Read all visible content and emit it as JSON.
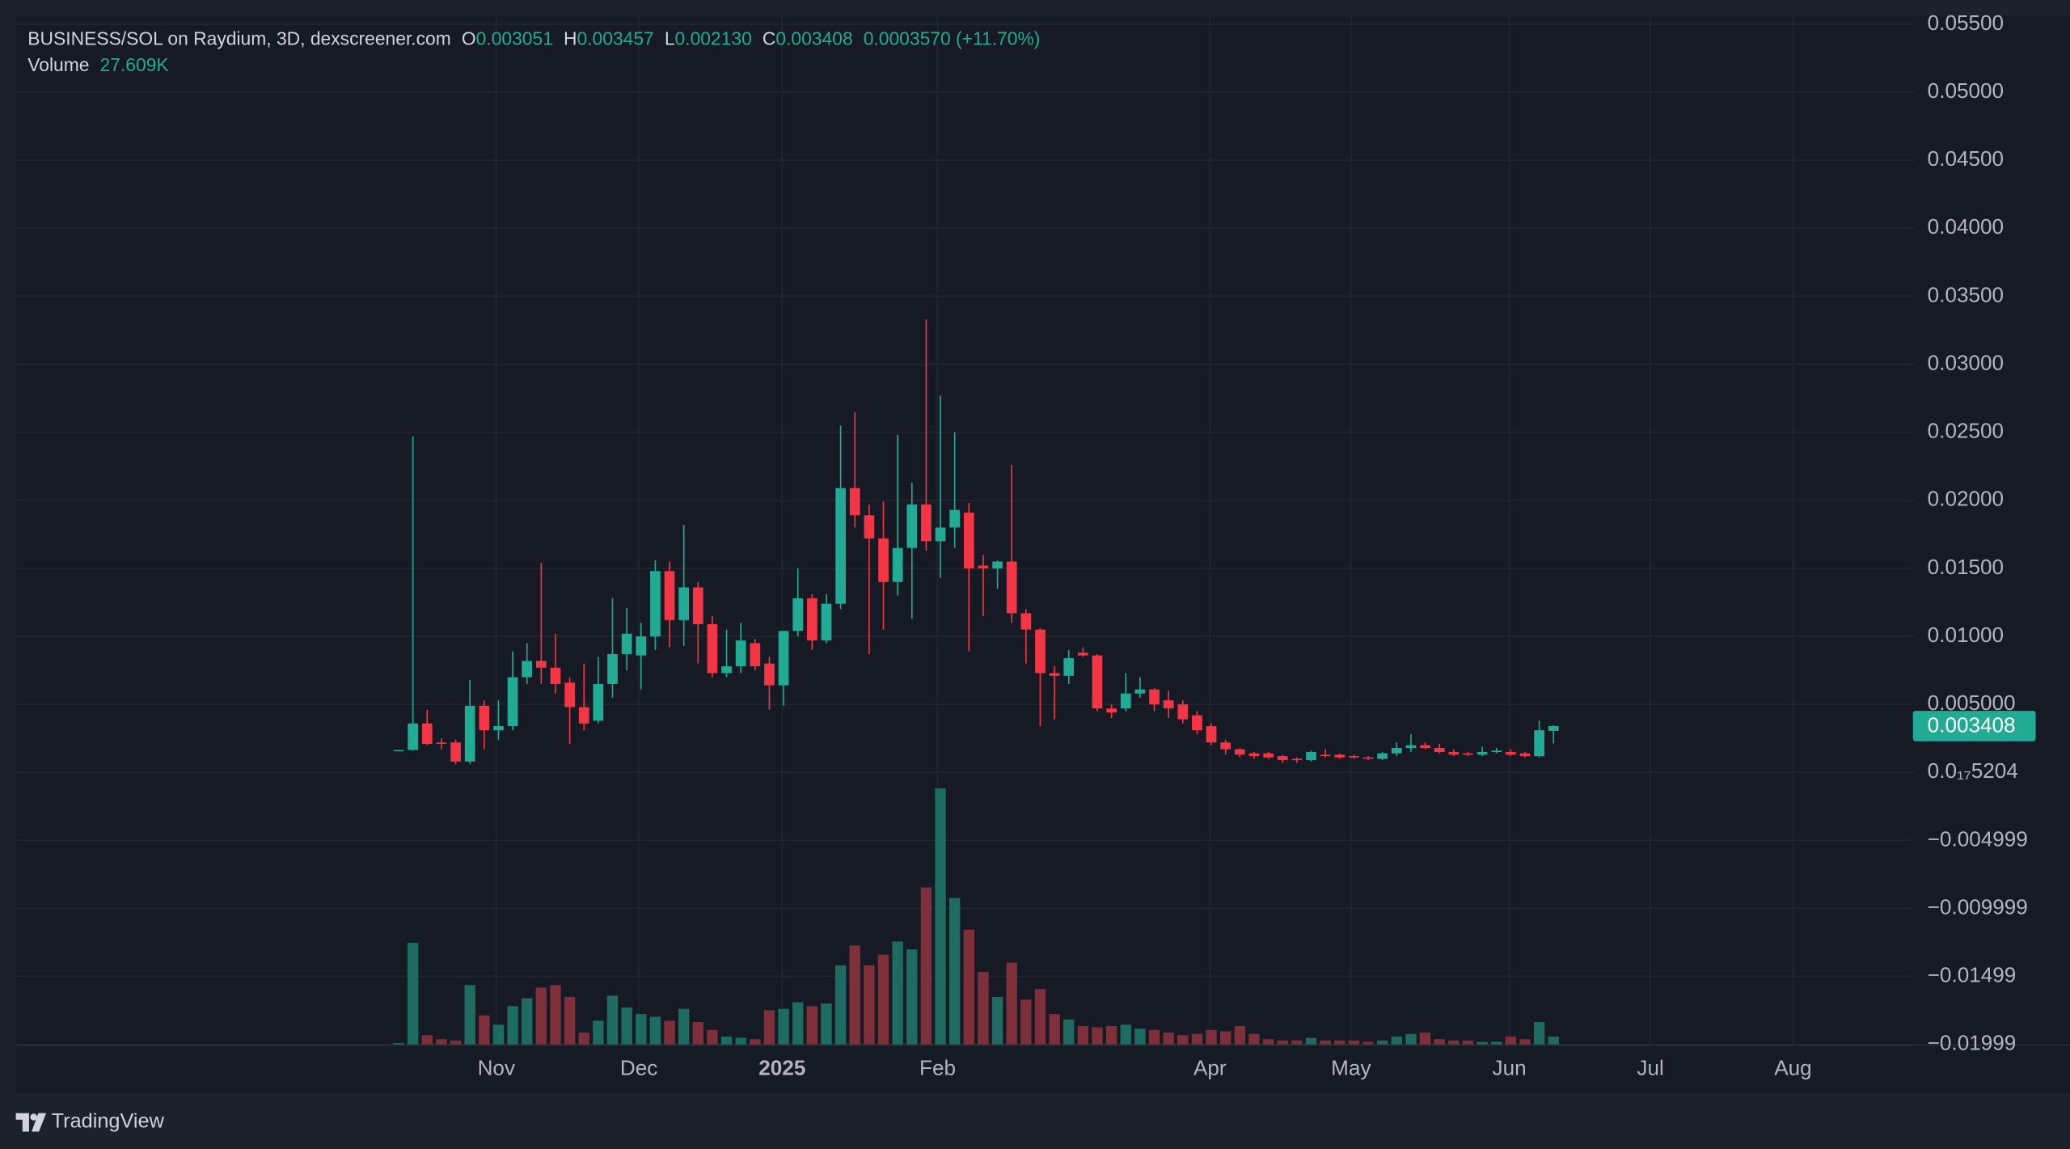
{
  "chart_data": {
    "type": "candlestick",
    "title": "BUSINESS/SOL on Raydium, 3D, dexscreener.com",
    "legend": [
      {
        "label": "O",
        "value": "0.003051"
      },
      {
        "label": "H",
        "value": "0.003457"
      },
      {
        "label": "L",
        "value": "0.002130"
      },
      {
        "label": "C",
        "value": "0.003408"
      }
    ],
    "change": "0.0003570 (+11.70%)",
    "volume_label": "Volume",
    "volume_text": "27.609K",
    "last_price_label": "0.003408",
    "branding": "TradingView",
    "categories": [
      null,
      null,
      null,
      null,
      null,
      null,
      null,
      null,
      null,
      null,
      null,
      null,
      null,
      null,
      null,
      null,
      null,
      null,
      null,
      null,
      null,
      null,
      null,
      null,
      null,
      null,
      null,
      null,
      null,
      null,
      null,
      null,
      null,
      null,
      null,
      null,
      null,
      null,
      null,
      null,
      null,
      null,
      null,
      null,
      null,
      null,
      null,
      null,
      null,
      null,
      null,
      null,
      null,
      null,
      null,
      null,
      null,
      null,
      null,
      null,
      null,
      null,
      null,
      null,
      null,
      null,
      null,
      null,
      null,
      null,
      null,
      null,
      null,
      null,
      null,
      null,
      null,
      null,
      null,
      null,
      null,
      null
    ],
    "open": [
      0.00165,
      0.00165,
      0.0036,
      0.0022,
      0.0022,
      0.0008,
      0.0049,
      0.0031,
      0.0034,
      0.007,
      0.0082,
      0.0077,
      0.0066,
      0.0048,
      0.0038,
      0.0065,
      0.0087,
      0.0086,
      0.01,
      0.0148,
      0.0112,
      0.0136,
      0.0109,
      0.0073,
      0.0078,
      0.0095,
      0.008,
      0.0064,
      0.0104,
      0.0128,
      0.0097,
      0.0124,
      0.0209,
      0.0189,
      0.0172,
      0.014,
      0.0165,
      0.0197,
      0.017,
      0.018,
      0.0191,
      0.0152,
      0.015,
      0.0155,
      0.0117,
      0.0105,
      0.0073,
      0.0071,
      0.0088,
      0.0086,
      0.0047,
      0.0047,
      0.0058,
      0.0061,
      0.0053,
      0.005,
      0.0042,
      0.0034,
      0.0022,
      0.0017,
      0.0014,
      0.0014,
      0.0012,
      0.001,
      0.0009,
      0.0013,
      0.0013,
      0.0012,
      0.0011,
      0.001,
      0.0014,
      0.0018,
      0.002,
      0.0018,
      0.0015,
      0.0014,
      0.0013,
      0.0015,
      0.0015,
      0.0014,
      0.0012,
      0.003051
    ],
    "high": [
      0.00165,
      0.0247,
      0.0046,
      0.0025,
      0.0024,
      0.0068,
      0.0053,
      0.0053,
      0.0089,
      0.0095,
      0.0154,
      0.0102,
      0.007,
      0.008,
      0.0085,
      0.0128,
      0.0121,
      0.011,
      0.0156,
      0.0155,
      0.0182,
      0.014,
      0.0115,
      0.0105,
      0.011,
      0.0098,
      0.0085,
      0.0104,
      0.015,
      0.0131,
      0.0131,
      0.0255,
      0.0265,
      0.0197,
      0.0199,
      0.0248,
      0.0213,
      0.0333,
      0.0277,
      0.025,
      0.0198,
      0.016,
      0.0156,
      0.0226,
      0.012,
      0.0106,
      0.0078,
      0.009,
      0.0092,
      0.0087,
      0.005,
      0.0073,
      0.007,
      0.0062,
      0.006,
      0.0053,
      0.0045,
      0.0036,
      0.0024,
      0.0018,
      0.0015,
      0.0015,
      0.0013,
      0.0011,
      0.0016,
      0.0017,
      0.0014,
      0.0013,
      0.0012,
      0.0015,
      0.0022,
      0.0028,
      0.0022,
      0.0021,
      0.0017,
      0.0015,
      0.0019,
      0.0018,
      0.0017,
      0.0015,
      0.0038,
      0.003457
    ],
    "low": [
      0.00165,
      0.0016,
      0.002,
      0.0017,
      0.0006,
      0.0006,
      0.0017,
      0.0024,
      0.0031,
      0.0065,
      0.0065,
      0.0058,
      0.0021,
      0.0031,
      0.0036,
      0.0055,
      0.0075,
      0.0061,
      0.009,
      0.0092,
      0.0093,
      0.008,
      0.007,
      0.007,
      0.0073,
      0.0075,
      0.0046,
      0.0049,
      0.01,
      0.009,
      0.0095,
      0.012,
      0.018,
      0.0087,
      0.0105,
      0.013,
      0.0113,
      0.0163,
      0.0143,
      0.0165,
      0.0089,
      0.0115,
      0.0135,
      0.011,
      0.008,
      0.0034,
      0.0039,
      0.0065,
      0.0085,
      0.0045,
      0.004,
      0.0045,
      0.0055,
      0.0045,
      0.004,
      0.0036,
      0.0028,
      0.002,
      0.0013,
      0.0011,
      0.001,
      0.001,
      0.0007,
      0.0007,
      0.0008,
      0.0011,
      0.001,
      0.001,
      0.0009,
      0.0009,
      0.0012,
      0.0015,
      0.0017,
      0.0014,
      0.0012,
      0.0012,
      0.0012,
      0.0014,
      0.0012,
      0.0011,
      0.0011,
      0.00213
    ],
    "close": [
      0.00165,
      0.0036,
      0.0021,
      0.0021,
      0.0008,
      0.0049,
      0.0031,
      0.0034,
      0.007,
      0.0082,
      0.0077,
      0.0065,
      0.0048,
      0.0036,
      0.0065,
      0.0087,
      0.0102,
      0.01,
      0.0148,
      0.0112,
      0.0136,
      0.0109,
      0.0073,
      0.0078,
      0.0097,
      0.0078,
      0.0064,
      0.0104,
      0.0128,
      0.0097,
      0.0124,
      0.0209,
      0.0189,
      0.0172,
      0.014,
      0.0165,
      0.0197,
      0.017,
      0.018,
      0.0193,
      0.015,
      0.015,
      0.0155,
      0.0117,
      0.0105,
      0.0073,
      0.0071,
      0.0084,
      0.0086,
      0.0047,
      0.0044,
      0.0058,
      0.0061,
      0.005,
      0.0047,
      0.0039,
      0.0031,
      0.0022,
      0.0017,
      0.0013,
      0.0012,
      0.0011,
      0.0009,
      0.0009,
      0.0015,
      0.0012,
      0.0011,
      0.0011,
      0.001,
      0.0014,
      0.0018,
      0.002,
      0.0018,
      0.0015,
      0.0013,
      0.0013,
      0.0015,
      0.0016,
      0.0013,
      0.0012,
      0.0031,
      0.003408
    ],
    "volume": [
      4600,
      354200,
      32200,
      18400,
      13800,
      207000,
      101200,
      69000,
      133400,
      161000,
      197800,
      207000,
      165600,
      41400,
      82800,
      170200,
      128800,
      105800,
      96600,
      82800,
      124200,
      78200,
      50600,
      27600,
      23000,
      18400,
      119600,
      124200,
      147200,
      133400,
      142600,
      276000,
      345000,
      276000,
      312800,
      358800,
      331200,
      547400,
      892400,
      510600,
      400200,
      253000,
      165600,
      285200,
      156400,
      193200,
      105800,
      87400,
      64400,
      59800,
      64400,
      69000,
      55200,
      50600,
      41400,
      32200,
      36800,
      50600,
      46000,
      64400,
      36800,
      18400,
      13800,
      13800,
      23000,
      13800,
      13800,
      13800,
      9200,
      13800,
      27600,
      36800,
      41400,
      18400,
      13800,
      13800,
      9200,
      9200,
      27600,
      18400,
      78200,
      27609
    ],
    "up_color": "#22ab94",
    "down_color": "#f23645",
    "volume_up_color": "#1d6b61",
    "volume_down_color": "#7d2f3a",
    "ylim": [
      -0.02,
      0.0556
    ],
    "yticks": [
      {
        "value": 0.055,
        "label": "0.05500"
      },
      {
        "value": 0.05,
        "label": "0.05000"
      },
      {
        "value": 0.045,
        "label": "0.04500"
      },
      {
        "value": 0.04,
        "label": "0.04000"
      },
      {
        "value": 0.035,
        "label": "0.03500"
      },
      {
        "value": 0.03,
        "label": "0.03000"
      },
      {
        "value": 0.025,
        "label": "0.02500"
      },
      {
        "value": 0.02,
        "label": "0.02000"
      },
      {
        "value": 0.015,
        "label": "0.01500"
      },
      {
        "value": 0.01,
        "label": "0.01000"
      },
      {
        "value": 0.005,
        "label": "0.005000"
      },
      {
        "value": 5.204e-18,
        "label": "0.0₁₇5204"
      },
      {
        "value": -0.004999,
        "label": "−0.004999"
      },
      {
        "value": -0.009999,
        "label": "−0.009999"
      },
      {
        "value": -0.01499,
        "label": "−0.01499"
      },
      {
        "value": -0.01999,
        "label": "−0.01999"
      }
    ],
    "xlim": [
      -26.85,
      106.3
    ],
    "xticks": [
      {
        "value": 6.85,
        "label": "Nov"
      },
      {
        "value": 16.85,
        "label": "Dec"
      },
      {
        "value": 26.9,
        "label": "2025",
        "bold": true
      },
      {
        "value": 37.8,
        "label": "Feb"
      },
      {
        "value": 56.9,
        "label": "Apr"
      },
      {
        "value": 66.8,
        "label": "May"
      },
      {
        "value": 77.9,
        "label": "Jun"
      },
      {
        "value": 87.8,
        "label": "Jul"
      },
      {
        "value": 97.8,
        "label": "Aug"
      }
    ],
    "grid": true
  }
}
